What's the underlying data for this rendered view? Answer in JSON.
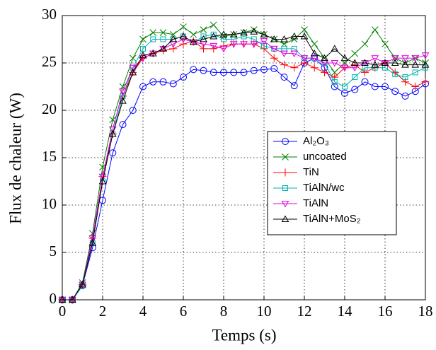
{
  "chart_data": {
    "type": "line",
    "xlabel": "Temps (s)",
    "ylabel": "Flux de chaleur (W)",
    "x": [
      0,
      0.5,
      1,
      1.5,
      2,
      2.5,
      3,
      3.5,
      4,
      4.5,
      5,
      5.5,
      6,
      6.5,
      7,
      7.5,
      8,
      8.5,
      9,
      9.5,
      10,
      10.5,
      11,
      11.5,
      12,
      12.5,
      13,
      13.5,
      14,
      14.5,
      15,
      15.5,
      16,
      16.5,
      17,
      17.5,
      18
    ],
    "xlim": [
      0,
      18
    ],
    "xticks": [
      0,
      2,
      4,
      6,
      8,
      10,
      12,
      14,
      16,
      18
    ],
    "ylim": [
      0,
      30
    ],
    "yticks": [
      0,
      5,
      10,
      15,
      20,
      25,
      30
    ],
    "grid": true,
    "series": [
      {
        "name": "Al₂O₃",
        "color": "#0000ff",
        "marker": "circle",
        "values": [
          0,
          0,
          1.5,
          5.5,
          10.5,
          15.5,
          18.5,
          20,
          22.5,
          23,
          23,
          22.8,
          23.5,
          24.3,
          24.2,
          24,
          24,
          24,
          24,
          24.2,
          24.3,
          24.4,
          23.5,
          22.6,
          25,
          25.5,
          24.5,
          22.5,
          21.8,
          22.2,
          23,
          22.5,
          22.5,
          22,
          21.5,
          22,
          22.8
        ]
      },
      {
        "name": "uncoated",
        "color": "#008000",
        "marker": "x",
        "values": [
          0,
          0,
          1.8,
          7,
          14,
          19,
          22.5,
          25.5,
          27.5,
          28.2,
          28.2,
          28,
          28.8,
          28,
          28.5,
          29,
          27.8,
          28,
          28.2,
          28.5,
          28,
          27.5,
          27,
          27.5,
          28.5,
          27,
          25.5,
          24,
          25,
          26,
          27,
          28.5,
          27,
          25.5,
          25,
          25.5,
          25
        ]
      },
      {
        "name": "TiN",
        "color": "#ff0000",
        "marker": "plus",
        "values": [
          0,
          0,
          1.6,
          6.5,
          13,
          17.5,
          21.5,
          24,
          25.5,
          26,
          26.3,
          26.5,
          27,
          27.3,
          26.5,
          26.5,
          26.8,
          27,
          27,
          27,
          26.5,
          25.5,
          24.8,
          24.5,
          25,
          24.5,
          24,
          23.5,
          24.5,
          24.8,
          24,
          24.5,
          25,
          24,
          23,
          22.5,
          23
        ]
      },
      {
        "name": "TiAlN/wc",
        "color": "#00b0b0",
        "marker": "square",
        "values": [
          0,
          0,
          1.5,
          6,
          12.5,
          17.5,
          21.5,
          24.5,
          26.5,
          27.5,
          27.5,
          27.5,
          27.8,
          27.2,
          27.8,
          28,
          27.5,
          27.5,
          27.8,
          27.5,
          26.8,
          26.5,
          26.5,
          26.5,
          25.5,
          25.5,
          25,
          23,
          22.5,
          23.5,
          24.5,
          24.5,
          24.5,
          23.8,
          23.5,
          24,
          24.5
        ]
      },
      {
        "name": "TiAlN",
        "color": "#e000e0",
        "marker": "triangle-down",
        "values": [
          0,
          0,
          1.6,
          6.5,
          13,
          18,
          22,
          24.5,
          25.5,
          26,
          26.5,
          27,
          27.5,
          27.2,
          27,
          26.8,
          26.5,
          27,
          27,
          27,
          27.3,
          26.5,
          26,
          26,
          25.5,
          25.5,
          25,
          25,
          24.5,
          24.5,
          25,
          25.5,
          25,
          25.5,
          25.5,
          25.5,
          25.8
        ]
      },
      {
        "name": "TiAlN+MoS₂",
        "color": "#000000",
        "marker": "triangle-up",
        "values": [
          0,
          0,
          1.6,
          6,
          12.5,
          17.5,
          21,
          24,
          25.8,
          26,
          26.5,
          27.5,
          27.8,
          27.2,
          27.5,
          27.8,
          28,
          28,
          28.2,
          28.3,
          28,
          27.5,
          27.5,
          27.8,
          27.8,
          26,
          25.5,
          26.5,
          25.5,
          25,
          25,
          24.8,
          25,
          25,
          24.8,
          24.8,
          24.8
        ]
      }
    ]
  }
}
